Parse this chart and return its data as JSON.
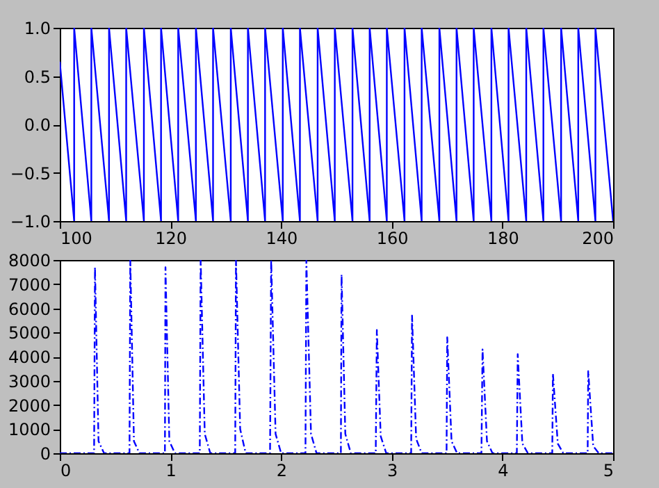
{
  "chart_data": [
    {
      "type": "line",
      "xlim": [
        100,
        200
      ],
      "xticks": [
        100,
        120,
        140,
        160,
        180,
        200
      ],
      "ylim": [
        -1,
        1
      ],
      "yticks": [
        {
          "value": -1,
          "label": "−1.0"
        },
        {
          "value": -0.5,
          "label": "−0.5"
        },
        {
          "value": 0,
          "label": "0.0"
        },
        {
          "value": 0.5,
          "label": "0.5"
        },
        {
          "value": 1,
          "label": "1.0"
        }
      ],
      "grid": false,
      "marker": "none",
      "line_style": "solid",
      "series": [
        {
          "color": "#0000ff",
          "x": [
            100,
            102.6,
            102.6,
            105.7,
            105.7,
            108.9,
            108.9,
            112.0,
            112.0,
            115.2,
            115.2,
            118.3,
            118.3,
            121.4,
            121.4,
            124.6,
            124.6,
            127.7,
            127.7,
            130.9,
            130.9,
            134.0,
            134.0,
            137.1,
            137.1,
            140.3,
            140.3,
            143.4,
            143.4,
            146.6,
            146.6,
            149.7,
            149.7,
            152.9,
            152.9,
            156.0,
            156.0,
            159.1,
            159.1,
            162.3,
            162.3,
            165.4,
            165.4,
            168.6,
            168.6,
            171.7,
            171.7,
            174.8,
            174.8,
            178.0,
            178.0,
            181.1,
            181.1,
            184.3,
            184.3,
            187.4,
            187.4,
            190.6,
            190.6,
            193.7,
            193.7,
            196.8,
            196.8,
            200
          ],
          "values": [
            0.65,
            -1,
            1,
            -1,
            1,
            -1,
            1,
            -1,
            1,
            -1,
            1,
            -1,
            1,
            -1,
            1,
            -1,
            1,
            -1,
            1,
            -1,
            1,
            -1,
            1,
            -1,
            1,
            -1,
            1,
            -1,
            1,
            -1,
            1,
            -1,
            1,
            -1,
            1,
            -1,
            1,
            -1,
            1,
            -1,
            1,
            -1,
            1,
            -1,
            1,
            -1,
            1,
            -1,
            1,
            -1,
            1,
            -1,
            1,
            -1,
            1,
            -1,
            1,
            -1,
            1,
            -1,
            1,
            -1,
            1,
            -1
          ]
        }
      ]
    },
    {
      "type": "line",
      "xlim": [
        0,
        5
      ],
      "xticks": [
        0,
        1,
        2,
        3,
        4,
        5
      ],
      "ylim": [
        0,
        8000
      ],
      "yticks": [
        0,
        1000,
        2000,
        3000,
        4000,
        5000,
        6000,
        7000,
        8000
      ],
      "grid": false,
      "marker": "none",
      "line_style": "dashed",
      "series": [
        {
          "color": "#0000ff",
          "x": [
            0,
            0.31,
            0.318,
            0.35,
            0.4,
            0.63,
            0.637,
            0.67,
            0.72,
            0.95,
            0.955,
            0.99,
            1.04,
            1.265,
            1.273,
            1.31,
            1.36,
            1.585,
            1.592,
            1.63,
            1.68,
            1.9,
            1.91,
            1.95,
            2.0,
            2.22,
            2.228,
            2.27,
            2.32,
            2.54,
            2.546,
            2.58,
            2.63,
            2.855,
            2.865,
            2.9,
            2.95,
            3.175,
            3.183,
            3.22,
            3.27,
            3.495,
            3.501,
            3.54,
            3.59,
            3.81,
            3.82,
            3.86,
            3.91,
            4.13,
            4.138,
            4.18,
            4.23,
            4.45,
            4.456,
            4.5,
            4.55,
            4.77,
            4.775,
            4.82,
            4.87,
            5
          ],
          "values": [
            0,
            0,
            7700,
            500,
            0,
            0,
            8000,
            500,
            0,
            0,
            7700,
            500,
            0,
            0,
            8000,
            800,
            0,
            0,
            8000,
            1000,
            0,
            0,
            8000,
            800,
            0,
            0,
            8000,
            800,
            0,
            0,
            7400,
            800,
            0,
            0,
            5100,
            700,
            0,
            0,
            5700,
            600,
            0,
            0,
            4800,
            500,
            0,
            0,
            4300,
            500,
            0,
            0,
            4100,
            400,
            0,
            0,
            3300,
            400,
            0,
            0,
            3400,
            300,
            0,
            0
          ]
        }
      ]
    }
  ]
}
